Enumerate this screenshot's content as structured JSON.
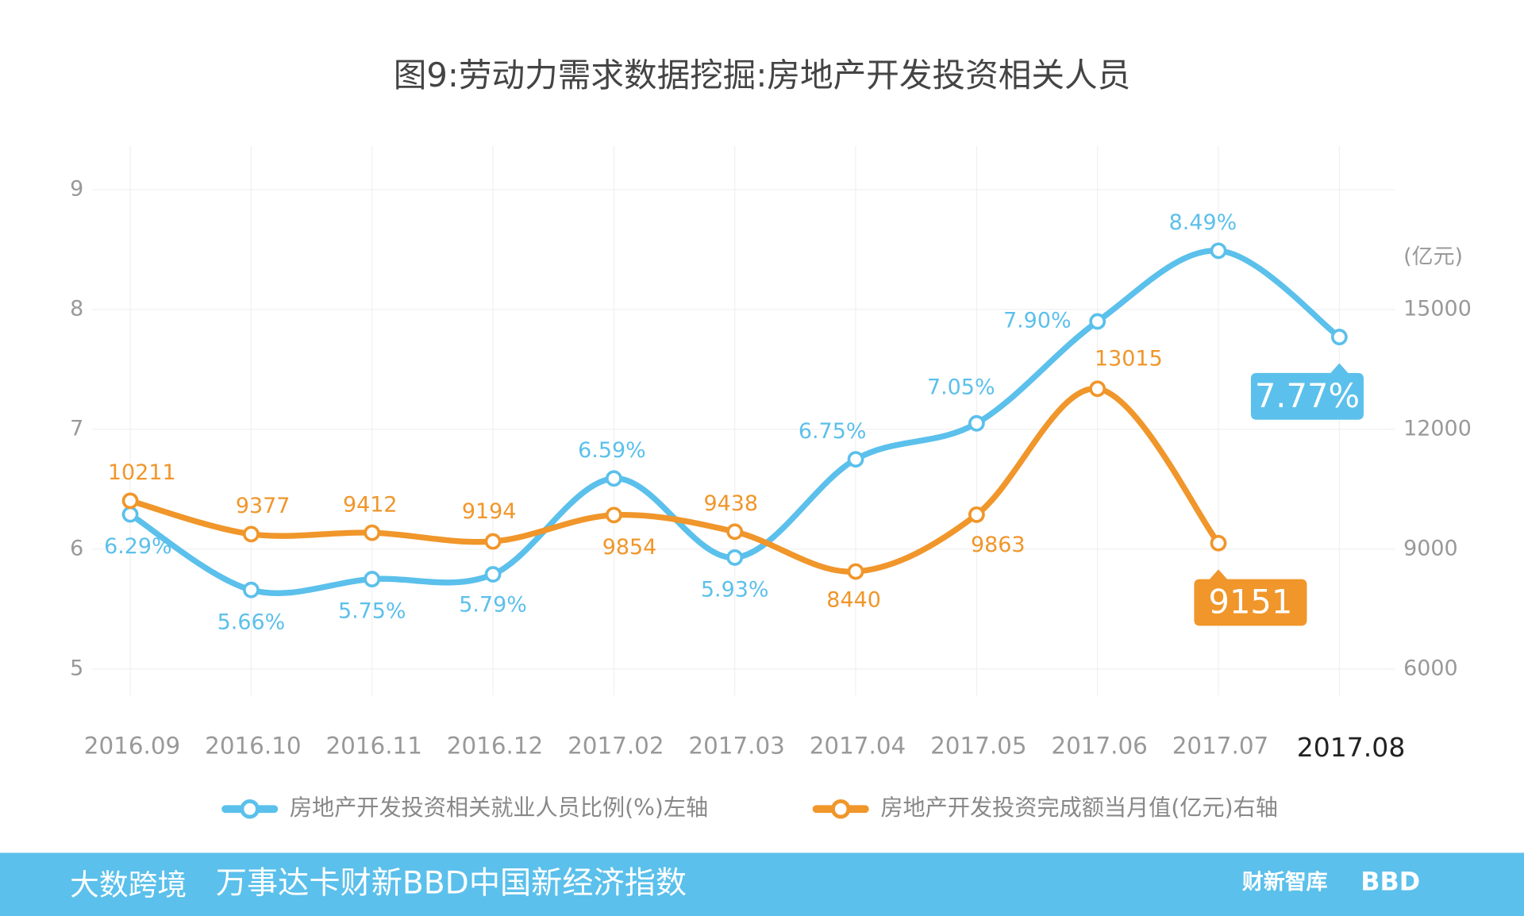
{
  "chart_data": {
    "type": "line",
    "title": "图9:劳动力需求数据挖掘:房地产开发投资相关人员",
    "categories": [
      "2016.09",
      "2016.10",
      "2016.11",
      "2016.12",
      "2017.02",
      "2017.03",
      "2017.04",
      "2017.05",
      "2017.06",
      "2017.07",
      "2017.08"
    ],
    "series": [
      {
        "name": "房地产开发投资相关就业人员比例(%)左轴",
        "color": "#5bc0eb",
        "values": [
          6.29,
          5.66,
          5.75,
          5.79,
          6.59,
          5.93,
          6.75,
          7.05,
          7.9,
          8.49,
          7.77
        ],
        "value_labels": [
          "6.29%",
          "5.66%",
          "5.75%",
          "5.79%",
          "6.59%",
          "5.93%",
          "6.75%",
          "7.05%",
          "7.90%",
          "8.49%",
          "7.77%"
        ]
      },
      {
        "name": "房地产开发投资完成额当月值(亿元)右轴",
        "color": "#f0962a",
        "axis": "y2",
        "values": [
          10211,
          9377,
          9412,
          9194,
          9854,
          9438,
          8440,
          9863,
          13015,
          9151,
          null
        ]
      }
    ],
    "ylim": [
      5,
      9
    ],
    "yticks": [
      5,
      6,
      7,
      8,
      9
    ],
    "y2lim": [
      6000,
      18000
    ],
    "y2ticks": [
      6000,
      9000,
      12000,
      15000
    ],
    "y2label": "(亿元)",
    "grid": true,
    "legend": "bottom",
    "footer": {
      "title": "万事达卡财新BBD中国新经济指数",
      "logo_left": "大数跨境",
      "logo_right1": "财新智库",
      "logo_right2": "BBD"
    }
  }
}
